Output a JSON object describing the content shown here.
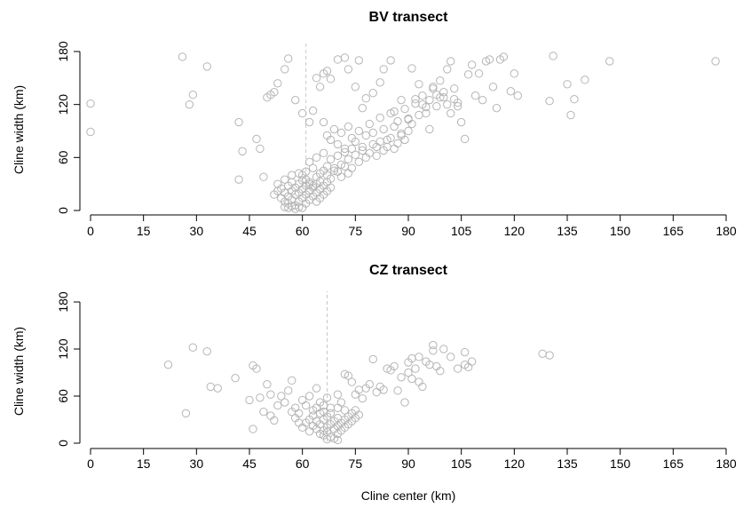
{
  "colors": {
    "points": "#b5b5b5",
    "axis": "#000000",
    "reference_line": "#c8c8c8"
  },
  "chart_data": [
    {
      "type": "scatter",
      "title": "BV transect",
      "xlabel": "",
      "ylabel": "Cline width (km)",
      "xlim": [
        0,
        180
      ],
      "ylim": [
        0,
        180
      ],
      "xticks": [
        "0",
        "15",
        "30",
        "45",
        "60",
        "75",
        "90",
        "105",
        "120",
        "135",
        "150",
        "165",
        "180"
      ],
      "yticks": [
        "0",
        "60",
        "120",
        "180"
      ],
      "reference_line_x": 61,
      "points": [
        [
          0,
          121
        ],
        [
          0,
          89
        ],
        [
          26,
          174
        ],
        [
          28,
          120
        ],
        [
          29,
          131
        ],
        [
          33,
          163
        ],
        [
          42,
          100
        ],
        [
          43,
          67
        ],
        [
          42,
          35
        ],
        [
          47,
          81
        ],
        [
          48,
          70
        ],
        [
          49,
          38
        ],
        [
          50,
          128
        ],
        [
          51,
          131
        ],
        [
          52,
          134
        ],
        [
          53,
          144
        ],
        [
          55,
          160
        ],
        [
          56,
          172
        ],
        [
          58,
          125
        ],
        [
          60,
          110
        ],
        [
          62,
          100
        ],
        [
          63,
          113
        ],
        [
          64,
          150
        ],
        [
          65,
          140
        ],
        [
          66,
          155
        ],
        [
          67,
          158
        ],
        [
          68,
          149
        ],
        [
          70,
          171
        ],
        [
          72,
          173
        ],
        [
          73,
          160
        ],
        [
          75,
          140
        ],
        [
          76,
          170
        ],
        [
          77,
          116
        ],
        [
          78,
          127
        ],
        [
          80,
          133
        ],
        [
          82,
          145
        ],
        [
          83,
          160
        ],
        [
          85,
          170
        ],
        [
          86,
          112
        ],
        [
          88,
          125
        ],
        [
          90,
          103
        ],
        [
          91,
          161
        ],
        [
          92,
          126
        ],
        [
          93,
          143
        ],
        [
          94,
          120
        ],
        [
          95,
          110
        ],
        [
          96,
          92
        ],
        [
          97,
          138
        ],
        [
          98,
          131
        ],
        [
          99,
          147
        ],
        [
          100,
          128
        ],
        [
          101,
          160
        ],
        [
          102,
          169
        ],
        [
          103,
          138
        ],
        [
          104,
          122
        ],
        [
          105,
          100
        ],
        [
          106,
          81
        ],
        [
          107,
          154
        ],
        [
          108,
          165
        ],
        [
          109,
          130
        ],
        [
          110,
          155
        ],
        [
          111,
          125
        ],
        [
          112,
          169
        ],
        [
          113,
          171
        ],
        [
          114,
          140
        ],
        [
          115,
          116
        ],
        [
          116,
          171
        ],
        [
          117,
          174
        ],
        [
          119,
          135
        ],
        [
          120,
          155
        ],
        [
          121,
          130
        ],
        [
          130,
          124
        ],
        [
          131,
          175
        ],
        [
          135,
          143
        ],
        [
          136,
          108
        ],
        [
          137,
          126
        ],
        [
          140,
          148
        ],
        [
          147,
          169
        ],
        [
          177,
          169
        ],
        [
          66,
          100
        ],
        [
          67,
          85
        ],
        [
          68,
          80
        ],
        [
          69,
          92
        ],
        [
          70,
          75
        ],
        [
          71,
          88
        ],
        [
          72,
          70
        ],
        [
          73,
          95
        ],
        [
          74,
          82
        ],
        [
          75,
          78
        ],
        [
          76,
          90
        ],
        [
          77,
          68
        ],
        [
          78,
          85
        ],
        [
          79,
          98
        ],
        [
          80,
          88
        ],
        [
          81,
          72
        ],
        [
          82,
          105
        ],
        [
          83,
          92
        ],
        [
          84,
          80
        ],
        [
          85,
          110
        ],
        [
          86,
          95
        ],
        [
          87,
          101
        ],
        [
          88,
          87
        ],
        [
          89,
          115
        ],
        [
          90,
          104
        ],
        [
          91,
          98
        ],
        [
          92,
          121
        ],
        [
          93,
          108
        ],
        [
          94,
          130
        ],
        [
          95,
          117
        ],
        [
          96,
          125
        ],
        [
          97,
          140
        ],
        [
          98,
          118
        ],
        [
          99,
          128
        ],
        [
          100,
          134
        ],
        [
          101,
          120
        ],
        [
          102,
          110
        ],
        [
          103,
          126
        ],
        [
          104,
          118
        ],
        [
          62,
          55
        ],
        [
          63,
          48
        ],
        [
          64,
          60
        ],
        [
          65,
          42
        ],
        [
          66,
          65
        ],
        [
          67,
          50
        ],
        [
          68,
          58
        ],
        [
          69,
          45
        ],
        [
          70,
          62
        ],
        [
          71,
          52
        ],
        [
          72,
          66
        ],
        [
          73,
          58
        ],
        [
          74,
          70
        ],
        [
          75,
          63
        ],
        [
          76,
          55
        ],
        [
          77,
          72
        ],
        [
          78,
          60
        ],
        [
          79,
          65
        ],
        [
          80,
          75
        ],
        [
          81,
          62
        ],
        [
          82,
          78
        ],
        [
          83,
          68
        ],
        [
          84,
          72
        ],
        [
          85,
          82
        ],
        [
          86,
          70
        ],
        [
          87,
          76
        ],
        [
          88,
          85
        ],
        [
          89,
          80
        ],
        [
          90,
          90
        ],
        [
          60,
          40
        ],
        [
          61,
          35
        ],
        [
          62,
          30
        ],
        [
          63,
          28
        ],
        [
          64,
          38
        ],
        [
          65,
          33
        ],
        [
          66,
          45
        ],
        [
          67,
          40
        ],
        [
          68,
          36
        ],
        [
          69,
          48
        ],
        [
          70,
          44
        ],
        [
          71,
          38
        ],
        [
          72,
          50
        ],
        [
          73,
          42
        ],
        [
          74,
          48
        ],
        [
          52,
          18
        ],
        [
          53,
          22
        ],
        [
          54,
          14
        ],
        [
          54,
          25
        ],
        [
          55,
          10
        ],
        [
          55,
          20
        ],
        [
          56,
          8
        ],
        [
          56,
          16
        ],
        [
          56,
          28
        ],
        [
          57,
          12
        ],
        [
          57,
          22
        ],
        [
          57,
          32
        ],
        [
          58,
          6
        ],
        [
          58,
          18
        ],
        [
          58,
          26
        ],
        [
          59,
          10
        ],
        [
          59,
          20
        ],
        [
          59,
          30
        ],
        [
          60,
          14
        ],
        [
          60,
          24
        ],
        [
          60,
          34
        ],
        [
          61,
          8
        ],
        [
          61,
          18
        ],
        [
          61,
          28
        ],
        [
          62,
          12
        ],
        [
          62,
          22
        ],
        [
          62,
          32
        ],
        [
          63,
          16
        ],
        [
          63,
          26
        ],
        [
          64,
          10
        ],
        [
          64,
          20
        ],
        [
          64,
          30
        ],
        [
          65,
          14
        ],
        [
          65,
          24
        ],
        [
          66,
          18
        ],
        [
          66,
          28
        ],
        [
          67,
          22
        ],
        [
          67,
          32
        ],
        [
          68,
          26
        ],
        [
          55,
          4
        ],
        [
          56,
          3
        ],
        [
          57,
          5
        ],
        [
          58,
          2
        ],
        [
          59,
          4
        ],
        [
          60,
          3
        ],
        [
          57,
          40
        ],
        [
          59,
          42
        ],
        [
          61,
          44
        ],
        [
          55,
          35
        ],
        [
          53,
          30
        ]
      ]
    },
    {
      "type": "scatter",
      "title": "CZ transect",
      "xlabel": "Cline center (km)",
      "ylabel": "Cline width (km)",
      "xlim": [
        0,
        180
      ],
      "ylim": [
        0,
        180
      ],
      "xticks": [
        "0",
        "15",
        "30",
        "45",
        "60",
        "75",
        "90",
        "105",
        "120",
        "135",
        "150",
        "165",
        "180"
      ],
      "yticks": [
        "0",
        "60",
        "120",
        "180"
      ],
      "reference_line_x": 67,
      "points": [
        [
          22,
          100
        ],
        [
          27,
          38
        ],
        [
          29,
          122
        ],
        [
          33,
          117
        ],
        [
          34,
          72
        ],
        [
          36,
          70
        ],
        [
          41,
          83
        ],
        [
          45,
          55
        ],
        [
          46,
          99
        ],
        [
          46,
          18
        ],
        [
          47,
          95
        ],
        [
          48,
          58
        ],
        [
          49,
          40
        ],
        [
          50,
          75
        ],
        [
          51,
          35
        ],
        [
          51,
          62
        ],
        [
          52,
          29
        ],
        [
          53,
          48
        ],
        [
          54,
          60
        ],
        [
          55,
          52
        ],
        [
          56,
          67
        ],
        [
          57,
          80
        ],
        [
          58,
          45
        ],
        [
          59,
          38
        ],
        [
          60,
          55
        ],
        [
          61,
          48
        ],
        [
          62,
          60
        ],
        [
          63,
          42
        ],
        [
          64,
          70
        ],
        [
          65,
          52
        ],
        [
          66,
          40
        ],
        [
          67,
          58
        ],
        [
          68,
          45
        ],
        [
          70,
          62
        ],
        [
          71,
          52
        ],
        [
          72,
          88
        ],
        [
          73,
          86
        ],
        [
          74,
          78
        ],
        [
          75,
          62
        ],
        [
          76,
          68
        ],
        [
          77,
          57
        ],
        [
          78,
          70
        ],
        [
          79,
          75
        ],
        [
          80,
          107
        ],
        [
          81,
          65
        ],
        [
          82,
          72
        ],
        [
          83,
          68
        ],
        [
          84,
          95
        ],
        [
          85,
          93
        ],
        [
          86,
          98
        ],
        [
          87,
          67
        ],
        [
          88,
          84
        ],
        [
          89,
          52
        ],
        [
          90,
          90
        ],
        [
          90,
          103
        ],
        [
          91,
          108
        ],
        [
          91,
          82
        ],
        [
          92,
          95
        ],
        [
          93,
          110
        ],
        [
          93,
          78
        ],
        [
          94,
          72
        ],
        [
          95,
          104
        ],
        [
          96,
          100
        ],
        [
          97,
          125
        ],
        [
          97,
          118
        ],
        [
          98,
          98
        ],
        [
          99,
          92
        ],
        [
          100,
          120
        ],
        [
          102,
          110
        ],
        [
          104,
          95
        ],
        [
          106,
          116
        ],
        [
          106,
          100
        ],
        [
          107,
          97
        ],
        [
          108,
          104
        ],
        [
          128,
          114
        ],
        [
          130,
          112
        ],
        [
          60,
          20
        ],
        [
          61,
          26
        ],
        [
          62,
          30
        ],
        [
          62,
          15
        ],
        [
          63,
          22
        ],
        [
          63,
          35
        ],
        [
          64,
          18
        ],
        [
          64,
          28
        ],
        [
          65,
          12
        ],
        [
          65,
          24
        ],
        [
          65,
          38
        ],
        [
          66,
          16
        ],
        [
          66,
          30
        ],
        [
          66,
          10
        ],
        [
          67,
          20
        ],
        [
          67,
          34
        ],
        [
          67,
          14
        ],
        [
          68,
          24
        ],
        [
          68,
          8
        ],
        [
          68,
          38
        ],
        [
          69,
          18
        ],
        [
          69,
          28
        ],
        [
          70,
          12
        ],
        [
          70,
          22
        ],
        [
          70,
          32
        ],
        [
          71,
          16
        ],
        [
          71,
          26
        ],
        [
          72,
          20
        ],
        [
          72,
          30
        ],
        [
          73,
          24
        ],
        [
          73,
          34
        ],
        [
          74,
          28
        ],
        [
          74,
          38
        ],
        [
          75,
          32
        ],
        [
          69,
          6
        ],
        [
          70,
          4
        ],
        [
          67,
          5
        ],
        [
          64,
          45
        ],
        [
          66,
          48
        ],
        [
          70,
          45
        ],
        [
          72,
          42
        ],
        [
          58,
          32
        ],
        [
          59,
          26
        ],
        [
          57,
          40
        ],
        [
          75,
          42
        ],
        [
          76,
          36
        ]
      ]
    }
  ]
}
